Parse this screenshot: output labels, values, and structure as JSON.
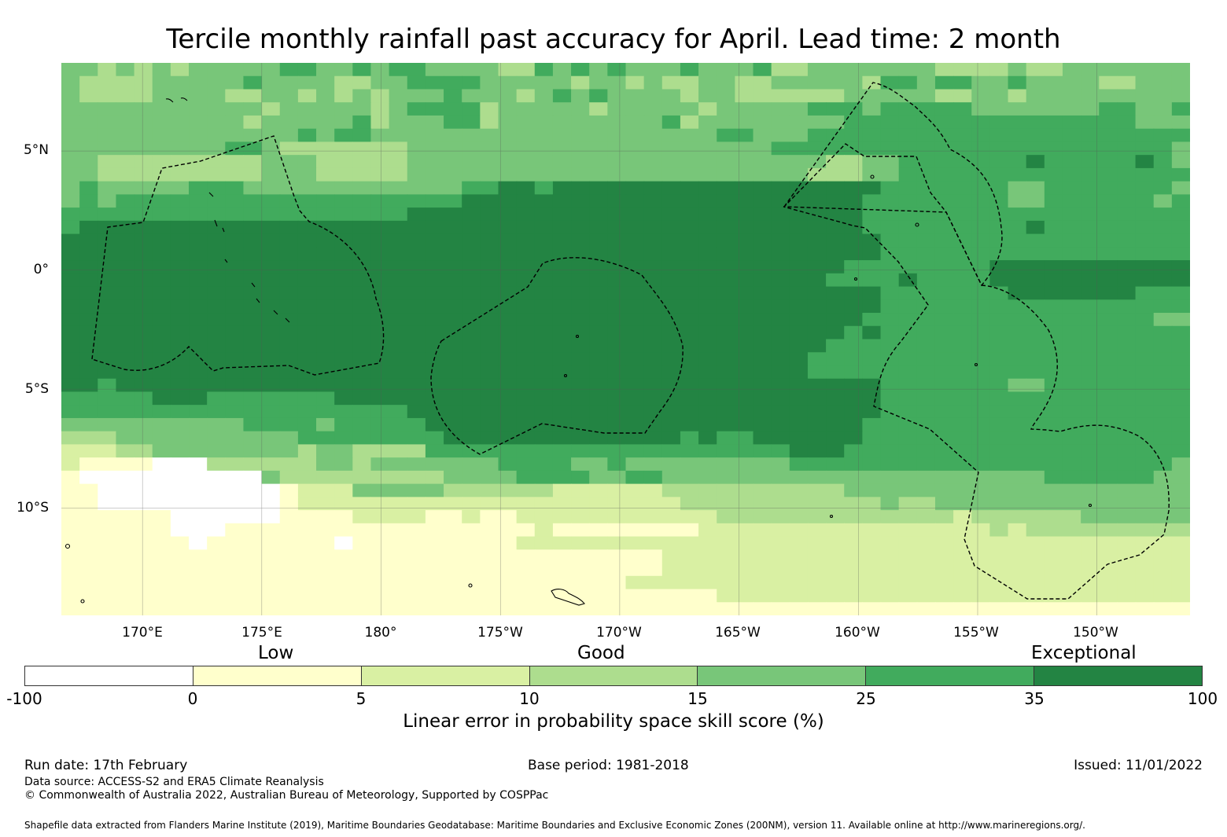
{
  "title": "Tercile monthly rainfall past accuracy for April. Lead time: 2 month",
  "map": {
    "lat_labels": [
      "5°N",
      "0°",
      "5°S",
      "10°S"
    ],
    "lon_labels": [
      "170°E",
      "175°E",
      "180°",
      "175°W",
      "170°W",
      "165°W",
      "160°W",
      "155°W",
      "150°W"
    ],
    "lat_range": [
      -14.5,
      8.7
    ],
    "lon_range": [
      166.6,
      213.9
    ],
    "legend_categories": [
      "Low",
      "Good",
      "Exceptional"
    ]
  },
  "chart_data": {
    "type": "heatmap",
    "colorbar": {
      "label": "Linear error in probability space skill score (%)",
      "ticks": [
        "-100",
        "0",
        "5",
        "10",
        "15",
        "25",
        "35",
        "100"
      ],
      "bins": [
        {
          "from": -100,
          "to": 0,
          "color": "#ffffff"
        },
        {
          "from": 0,
          "to": 5,
          "color": "#ffffcc"
        },
        {
          "from": 5,
          "to": 10,
          "color": "#d9f0a3"
        },
        {
          "from": 10,
          "to": 15,
          "color": "#addd8e"
        },
        {
          "from": 15,
          "to": 25,
          "color": "#78c679"
        },
        {
          "from": 25,
          "to": 35,
          "color": "#41ab5d"
        },
        {
          "from": 35,
          "to": 100,
          "color": "#238443"
        }
      ]
    },
    "rows_north_to_south": [
      "44343434444455445455444433545454445444533444444433334334444444",
      "43333444445444433445555444443443433443344444355455445444433444",
      "43333444433443434344454443454544443443333334444433443444444444",
      "44444444444344444345555344444344444344444555455555444444455445",
      "44444444443444445344455344444444453444444445555555555555555444",
      "44444444444445455444444444444444444455444555555555555555555555",
      "44444444455433333334444444444444444444455555555555555555555554",
      "44333333333444333334444444444444444444444433445555555655555654",
      "44333333333444333334444444444444444444444333445555555555555555",
      "45444445554444444444445566566666666666666666655555554455555554",
      "45455555555555555555556666666666666666666666555555554455555545",
      "55555555555555555556666666666666666666666666555555555555555555",
      "56666666666666666666666666666666666666666666555555555655555555",
      "66666666666666666666666666666666666666666666655555555555555555",
      "66666666666666666666666666666666666666666666655555555555555555",
      "66666666666666666666666666666666666666666665555555566666666666",
      "66666666666666666666666666666666666666666655556555566666666666",
      "66666666666666666666666666666666666666666666655555556666666555",
      "66666666666666666666666666666666666666666666655555555555555555",
      "66666666666666666666666666666666666666666666555555555555555544",
      "66666666666666666666666666666666666666666665655555555555555555",
      "66666666666666666666666666666666666666666655555555555555555555",
      "66666666666666666666666666666666666666666555555555555555555555",
      "66666666666666666666666666666666666666666555555555555555555555",
      "66566666666666666666666666666666666666666666655555554455555555",
      "55555666555555566666666666666666666666666666655555555555555555",
      "55555555555555555556666666666666666666666666655555555555555555",
      "44444444445555455555666666666666666666666666555555555555555555",
      "33344444444445555555566666666666665655666666555555555555555555",
      "22233444444443443333555555555555555555556665555555555555555555",
      "21111000333333443444444455554454444444445555555555555555555554",
      "10000000000433333333344445555445544444444444444444444455555544",
      "11000000000012224444433333322222233333333334444444444444444444",
      "11000000000012222222222222222222223333333333343344444444444444",
      "11111100000011112222112112222222222233333333333332333333444444",
      "11111100011111111111111111211111111222222222222222232333333333",
      "11111110111111101111111112222222222222222222222222222222222222",
      "11111111111111111111111111111111122222222222222222222222222222",
      "11111111111111111111111111111111122222222222222222222222222222",
      "11111111111111111111111111111112222222222222222222222222222222",
      "11111111111111111111111111111111111122222222222222222222222222",
      "11111111111111111111111111111111111111111111111111111111111111"
    ]
  },
  "footer": {
    "run_date": "Run date: 17th February",
    "base_period": "Base period: 1981-2018",
    "issued": "Issued: 11/01/2022",
    "data_source": "Data source: ACCESS-S2 and ERA5 Climate Reanalysis",
    "copyright": "© Commonwealth of Australia 2022, Australian Bureau of Meteorology, Supported by COSPPac",
    "shapefile": "Shapefile data extracted from Flanders Marine Institute (2019), Maritime Boundaries Geodatabase: Maritime Boundaries and Exclusive Economic Zones (200NM), version 11. Available online at http://www.marineregions.org/."
  }
}
